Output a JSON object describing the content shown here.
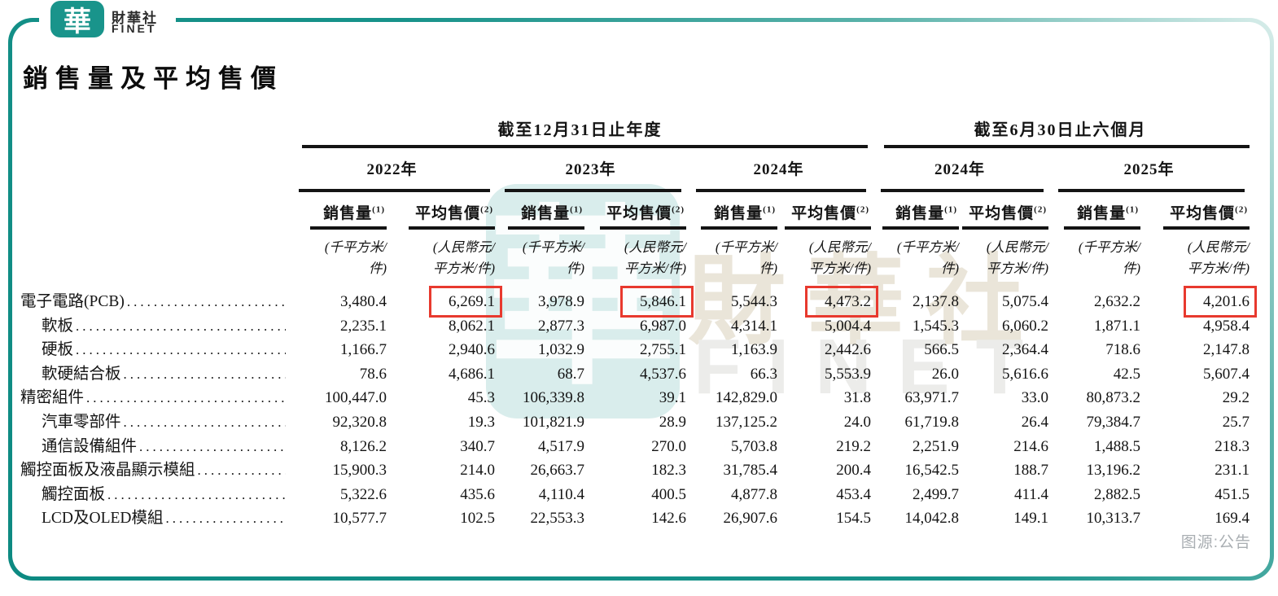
{
  "brand": {
    "logo_char": "華",
    "name_cn": "財華社",
    "name_en": "FINET"
  },
  "page": {
    "title": "銷售量及平均售價",
    "source_note": "图源:公告"
  },
  "colors": {
    "frame_teal": "#17928a",
    "logo_teal": "#19948b",
    "highlight_red": "#e8392e",
    "rule_black": "#141414",
    "watermark_teal": "rgba(32,150,140,0.17)",
    "source_gray": "#a9aeb2"
  },
  "watermark": {
    "logo_char": "華",
    "name_cn": "財華社",
    "name_en": "FINET"
  },
  "table": {
    "group_headers": [
      {
        "label": "截至12月31日止年度",
        "years": [
          "2022年",
          "2023年",
          "2024年"
        ]
      },
      {
        "label": "截至6月30日止六個月",
        "years": [
          "2024年",
          "2025年"
        ]
      }
    ],
    "col_headers": {
      "volume": "銷售量",
      "volume_sup": "(1)",
      "price": "平均售價",
      "price_sup": "(2)"
    },
    "units": {
      "volume_l1": "(千平方米/",
      "volume_l2": "件)",
      "price_l1": "(人民幣元/",
      "price_l2": "平方米/件)"
    },
    "rows": [
      {
        "label": "電子電路(PCB)",
        "indent": 0,
        "values": [
          "3,480.4",
          "6,269.1",
          "3,978.9",
          "5,846.1",
          "5,544.3",
          "4,473.2",
          "2,137.8",
          "5,075.4",
          "2,632.2",
          "4,201.6"
        ],
        "highlight": [
          1,
          3,
          5,
          9
        ]
      },
      {
        "label": "軟板",
        "indent": 1,
        "values": [
          "2,235.1",
          "8,062.1",
          "2,877.3",
          "6,987.0",
          "4,314.1",
          "5,004.4",
          "1,545.3",
          "6,060.2",
          "1,871.1",
          "4,958.4"
        ]
      },
      {
        "label": "硬板",
        "indent": 1,
        "values": [
          "1,166.7",
          "2,940.6",
          "1,032.9",
          "2,755.1",
          "1,163.9",
          "2,442.6",
          "566.5",
          "2,364.4",
          "718.6",
          "2,147.8"
        ]
      },
      {
        "label": "軟硬結合板",
        "indent": 1,
        "values": [
          "78.6",
          "4,686.1",
          "68.7",
          "4,537.6",
          "66.3",
          "5,553.9",
          "26.0",
          "5,616.6",
          "42.5",
          "5,607.4"
        ]
      },
      {
        "label": "精密組件",
        "indent": 0,
        "values": [
          "100,447.0",
          "45.3",
          "106,339.8",
          "39.1",
          "142,829.0",
          "31.8",
          "63,971.7",
          "33.0",
          "80,873.2",
          "29.2"
        ]
      },
      {
        "label": "汽車零部件",
        "indent": 1,
        "values": [
          "92,320.8",
          "19.3",
          "101,821.9",
          "28.9",
          "137,125.2",
          "24.0",
          "61,719.8",
          "26.4",
          "79,384.7",
          "25.7"
        ]
      },
      {
        "label": "通信設備組件 ",
        "indent": 1,
        "values": [
          "8,126.2",
          "340.7",
          "4,517.9",
          "270.0",
          "5,703.8",
          "219.2",
          "2,251.9",
          "214.6",
          "1,488.5",
          "218.3"
        ]
      },
      {
        "label": "觸控面板及液晶顯示模組",
        "indent": 0,
        "values": [
          "15,900.3",
          "214.0",
          "26,663.7",
          "182.3",
          "31,785.4",
          "200.4",
          "16,542.5",
          "188.7",
          "13,196.2",
          "231.1"
        ]
      },
      {
        "label": "觸控面板",
        "indent": 1,
        "values": [
          "5,322.6",
          "435.6",
          "4,110.4",
          "400.5",
          "4,877.8",
          "453.4",
          "2,499.7",
          "411.4",
          "2,882.5",
          "451.5"
        ]
      },
      {
        "label": "LCD及OLED模組",
        "indent": 1,
        "values": [
          "10,577.7",
          "102.5",
          "22,553.3",
          "142.6",
          "26,907.6",
          "154.5",
          "14,042.8",
          "149.1",
          "10,313.7",
          "169.4"
        ]
      }
    ]
  }
}
